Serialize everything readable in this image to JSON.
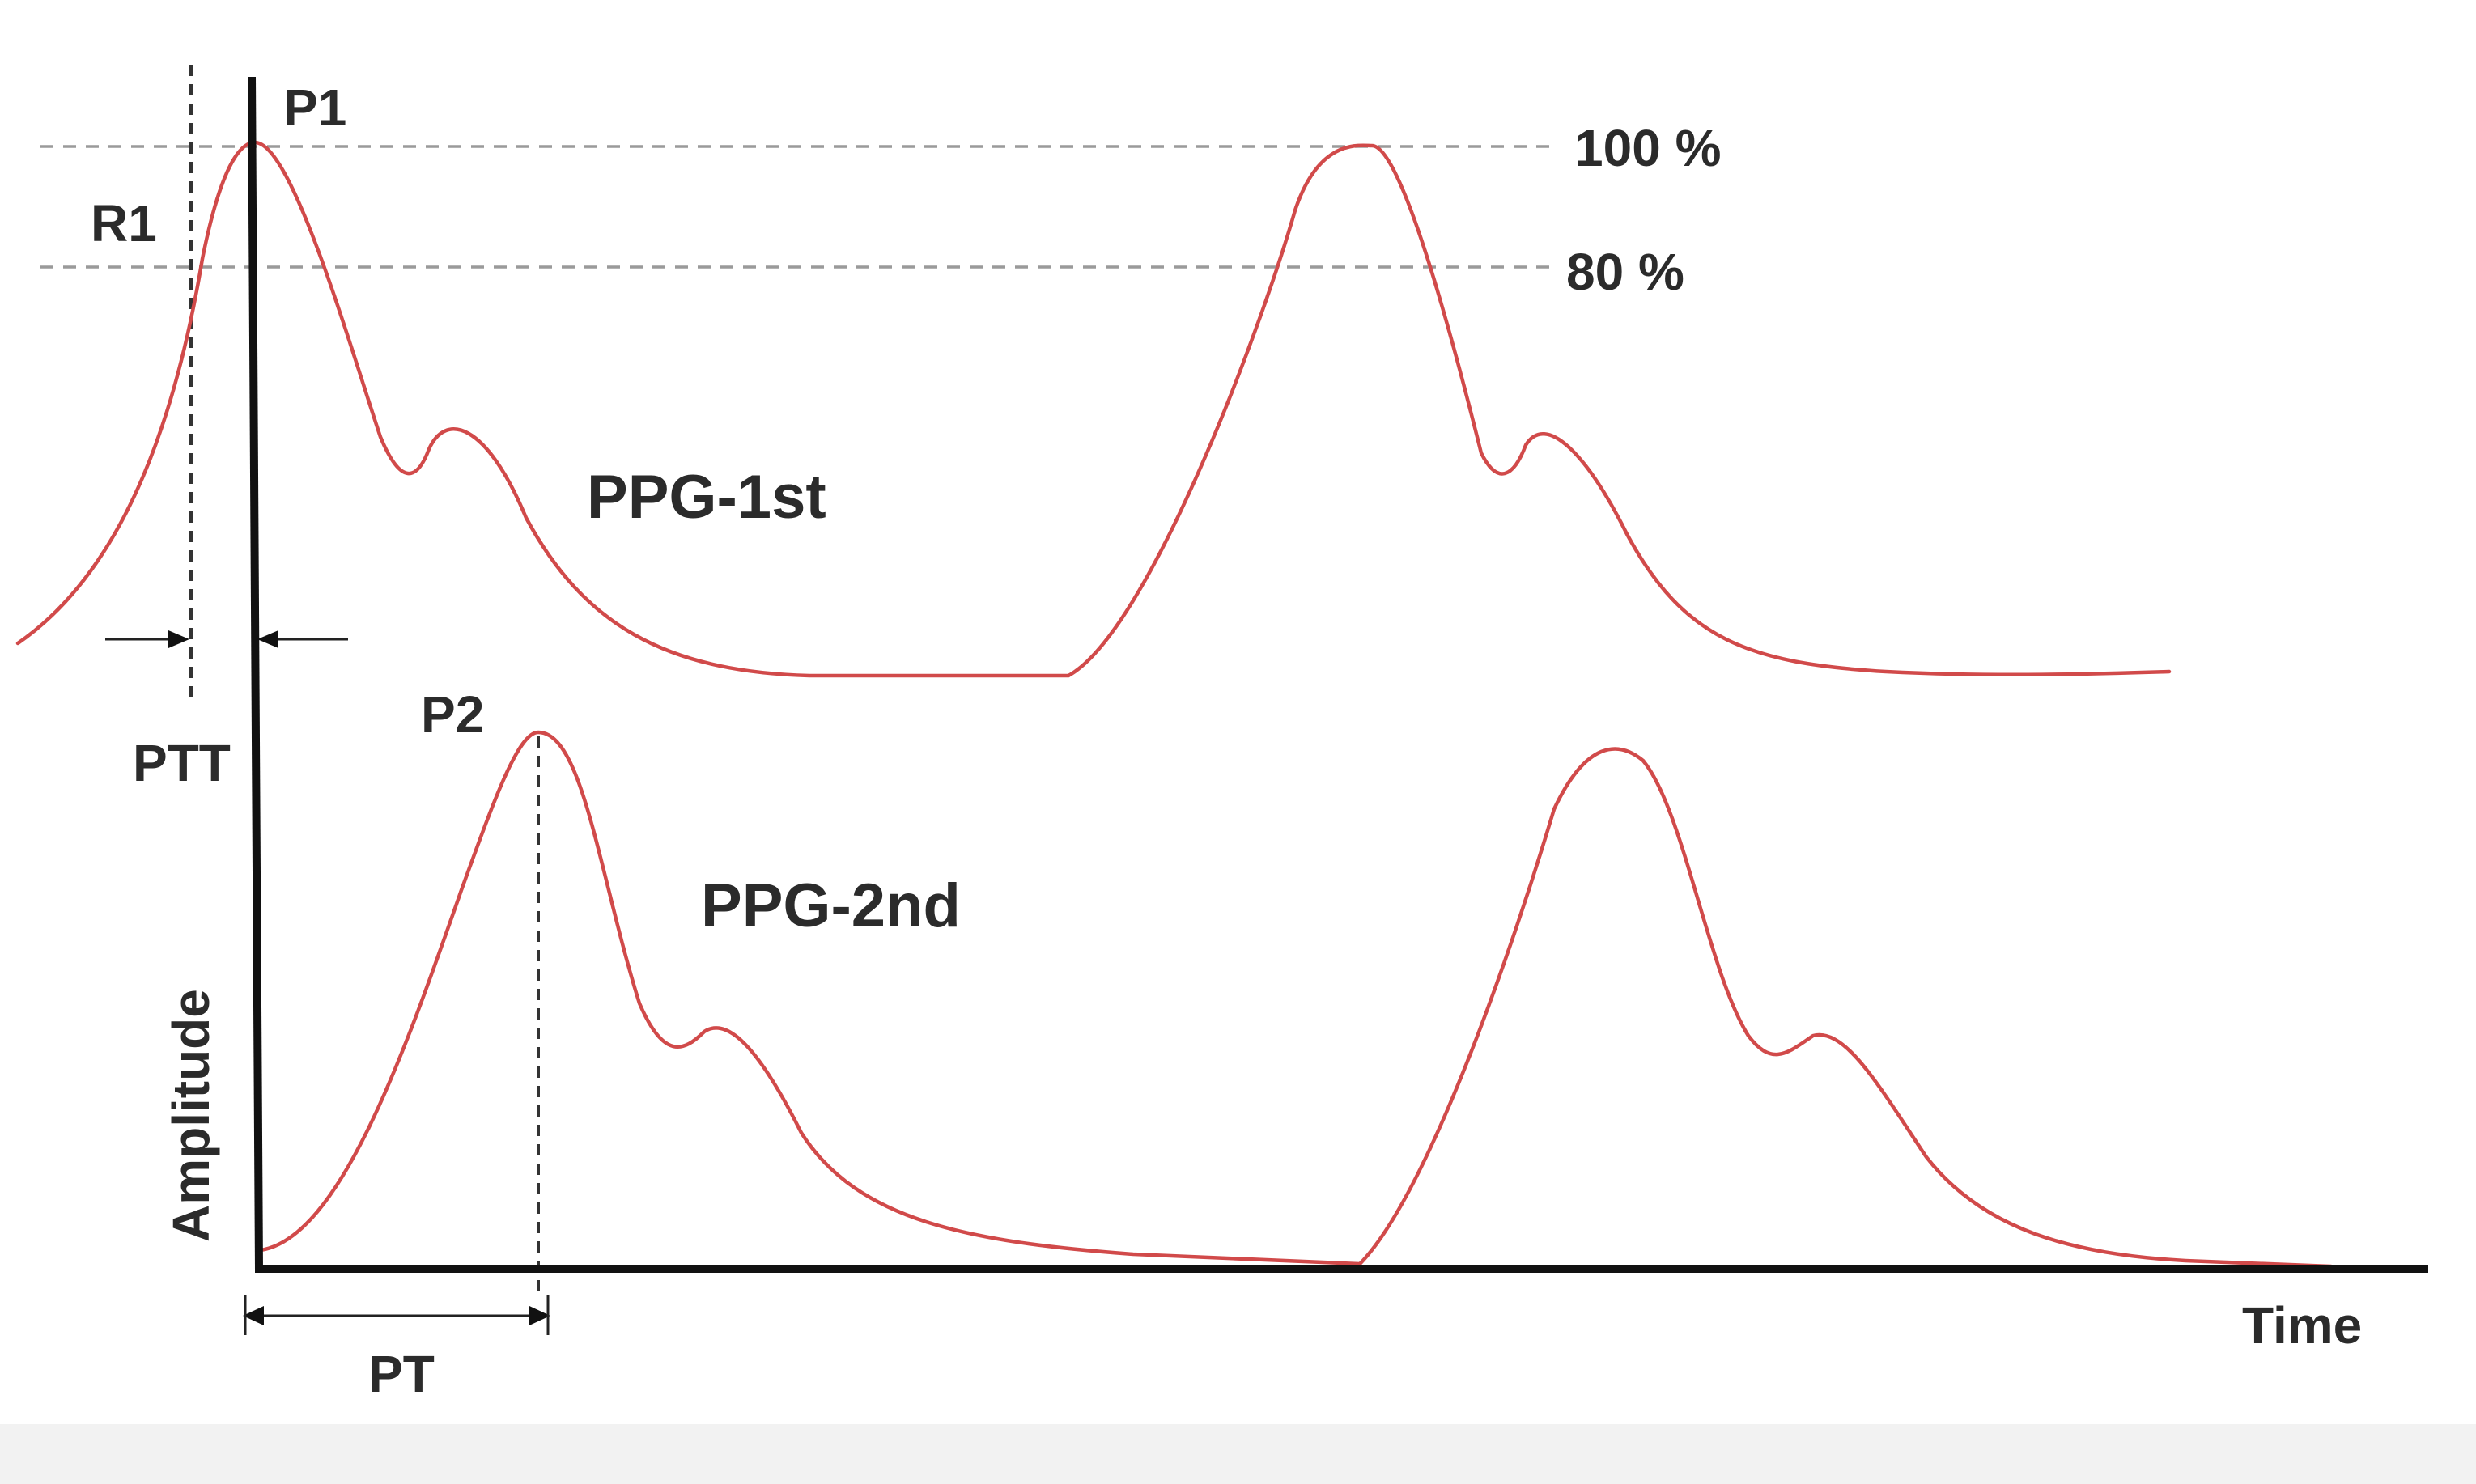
{
  "labels": {
    "p1": "P1",
    "p2": "P2",
    "r1": "R1",
    "pct100": "100 %",
    "pct80": "80 %",
    "ppg1": "PPG-1st",
    "ppg2": "PPG-2nd",
    "ptt": "PTT",
    "pt": "PT",
    "ylabel": "Amplitude",
    "xlabel": "Time"
  },
  "colors": {
    "waveform": "#d14a4a",
    "bottom_strip": "#f2f2f2"
  }
}
